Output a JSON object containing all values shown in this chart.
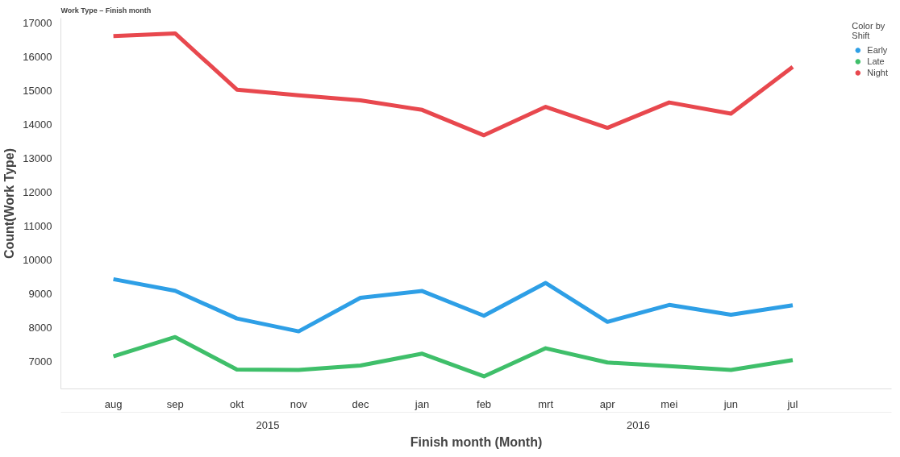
{
  "chart_data": {
    "type": "line",
    "title": "Work Type – Finish month",
    "xlabel": "Finish month (Month)",
    "ylabel": "Count(Work Type)",
    "legend_title": "Color by\nShift",
    "categories": [
      "aug",
      "sep",
      "okt",
      "nov",
      "dec",
      "jan",
      "feb",
      "mrt",
      "apr",
      "mei",
      "jun",
      "jul"
    ],
    "series": [
      {
        "name": "Early",
        "color": "#2e9fe6",
        "values": [
          9440,
          9100,
          8280,
          7900,
          8890,
          9090,
          8360,
          9330,
          8180,
          8680,
          8390,
          8670
        ]
      },
      {
        "name": "Late",
        "color": "#3fbf6a",
        "values": [
          7160,
          7730,
          6770,
          6760,
          6890,
          7240,
          6570,
          7400,
          6980,
          6870,
          6760,
          7050
        ]
      },
      {
        "name": "Night",
        "color": "#e8484e",
        "values": [
          16620,
          16700,
          15040,
          14870,
          14720,
          14440,
          13690,
          14530,
          13910,
          14660,
          14330,
          15710
        ]
      }
    ],
    "annotations": [
      "2015",
      "2016"
    ],
    "ylim": [
      6200,
      17150
    ],
    "yticks": [
      7000,
      8000,
      9000,
      10000,
      11000,
      12000,
      13000,
      14000,
      15000,
      16000,
      17000
    ],
    "grid": false,
    "legend": "top right",
    "marker": "none",
    "line_style": "solid"
  }
}
